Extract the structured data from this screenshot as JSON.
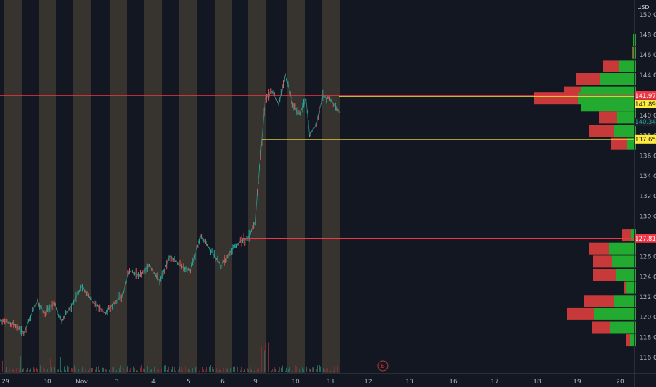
{
  "currency": "USD",
  "earnings_marker": "E",
  "chart_data": {
    "type": "candlestick",
    "y_unit": "USD",
    "ylim": [
      114.5,
      151.2
    ],
    "y_ticks": [
      116,
      118,
      120,
      122,
      124,
      126,
      128,
      130,
      132,
      134,
      136,
      138,
      140,
      142,
      144,
      146,
      148,
      150
    ],
    "y_tick_labels": [
      "116.00",
      "118.00",
      "120.00",
      "122.00",
      "124.00",
      "126.00",
      "128.00",
      "130.00",
      "132.00",
      "134.00",
      "136.00",
      "138.00",
      "140.00",
      "142.00",
      "144.00",
      "146.00",
      "148.00",
      "150.00"
    ],
    "x_tick_labels": [
      "29",
      "30",
      "Nov",
      "3",
      "4",
      "5",
      "6",
      "9",
      "10",
      "11",
      "12",
      "13",
      "16",
      "17",
      "18",
      "19",
      "20"
    ],
    "last_price": 140.34,
    "horizontal_lines": [
      {
        "price": 141.97,
        "label": "141.97",
        "color": "#f23645",
        "extends": "full"
      },
      {
        "price": 141.89,
        "label": "141.89",
        "color": "#ffeb3b",
        "extends": "partial"
      },
      {
        "price": 137.65,
        "label": "137.65",
        "color": "#ffeb3b",
        "extends": "partial"
      },
      {
        "price": 127.81,
        "label": "127.81",
        "color": "#f23645",
        "extends": "partial"
      }
    ],
    "price_path": [
      {
        "t": 0,
        "p": 119.7
      },
      {
        "t": 0.04,
        "p": 119.3
      },
      {
        "t": 0.07,
        "p": 118.4
      },
      {
        "t": 0.09,
        "p": 120.1
      },
      {
        "t": 0.11,
        "p": 121.6
      },
      {
        "t": 0.13,
        "p": 120.4
      },
      {
        "t": 0.16,
        "p": 121.4
      },
      {
        "t": 0.18,
        "p": 119.6
      },
      {
        "t": 0.21,
        "p": 121.1
      },
      {
        "t": 0.24,
        "p": 123.1
      },
      {
        "t": 0.27,
        "p": 121.6
      },
      {
        "t": 0.31,
        "p": 120.4
      },
      {
        "t": 0.34,
        "p": 121.6
      },
      {
        "t": 0.36,
        "p": 122.1
      },
      {
        "t": 0.38,
        "p": 124.6
      },
      {
        "t": 0.41,
        "p": 124.1
      },
      {
        "t": 0.44,
        "p": 125.1
      },
      {
        "t": 0.47,
        "p": 123.6
      },
      {
        "t": 0.5,
        "p": 126.1
      },
      {
        "t": 0.53,
        "p": 125.1
      },
      {
        "t": 0.56,
        "p": 124.6
      },
      {
        "t": 0.59,
        "p": 128.1
      },
      {
        "t": 0.62,
        "p": 126.6
      },
      {
        "t": 0.65,
        "p": 125.1
      },
      {
        "t": 0.68,
        "p": 126.6
      },
      {
        "t": 0.71,
        "p": 127.6
      },
      {
        "t": 0.73,
        "p": 127.8
      },
      {
        "t": 0.75,
        "p": 129.4
      },
      {
        "t": 0.77,
        "p": 137.6
      },
      {
        "t": 0.78,
        "p": 141.6
      },
      {
        "t": 0.8,
        "p": 142.4
      },
      {
        "t": 0.82,
        "p": 141.1
      },
      {
        "t": 0.84,
        "p": 144.1
      },
      {
        "t": 0.86,
        "p": 141.1
      },
      {
        "t": 0.88,
        "p": 140.1
      },
      {
        "t": 0.9,
        "p": 141.6
      },
      {
        "t": 0.91,
        "p": 138.1
      },
      {
        "t": 0.93,
        "p": 139.1
      },
      {
        "t": 0.95,
        "p": 141.9
      },
      {
        "t": 0.97,
        "p": 141.6
      },
      {
        "t": 1.0,
        "p": 140.3
      }
    ],
    "volume_profile": [
      {
        "price": 147.5,
        "buy": 4,
        "sell": 0
      },
      {
        "price": 146.2,
        "buy": 3,
        "sell": 2
      },
      {
        "price": 144.9,
        "buy": 24,
        "sell": 22
      },
      {
        "price": 143.6,
        "buy": 50,
        "sell": 34
      },
      {
        "price": 142.3,
        "buy": 77,
        "sell": 24
      },
      {
        "price": 141.7,
        "buy": 82,
        "sell": 62
      },
      {
        "price": 141.0,
        "buy": 77,
        "sell": 0
      },
      {
        "price": 139.8,
        "buy": 26,
        "sell": 26
      },
      {
        "price": 138.5,
        "buy": 30,
        "sell": 36
      },
      {
        "price": 137.2,
        "buy": 12,
        "sell": 23
      },
      {
        "price": 128.1,
        "buy": 6,
        "sell": 14
      },
      {
        "price": 126.8,
        "buy": 38,
        "sell": 28
      },
      {
        "price": 125.5,
        "buy": 34,
        "sell": 26
      },
      {
        "price": 124.2,
        "buy": 28,
        "sell": 32
      },
      {
        "price": 122.9,
        "buy": 13,
        "sell": 4
      },
      {
        "price": 121.6,
        "buy": 31,
        "sell": 42
      },
      {
        "price": 120.3,
        "buy": 59,
        "sell": 38
      },
      {
        "price": 119.0,
        "buy": 37,
        "sell": 25
      },
      {
        "price": 117.7,
        "buy": 8,
        "sell": 6
      }
    ]
  }
}
